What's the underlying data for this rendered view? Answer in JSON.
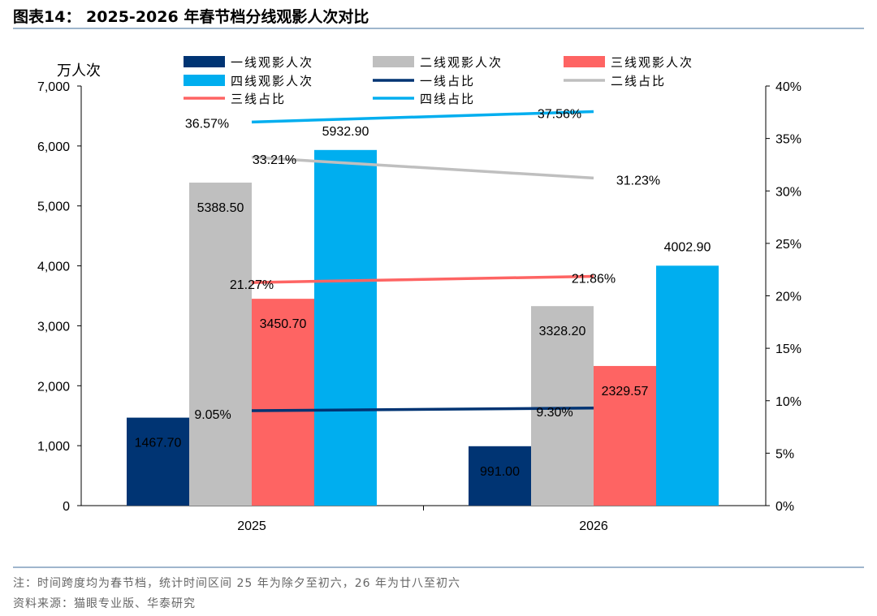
{
  "title": "图表14：  2025-2026 年春节档分线观影人次对比",
  "note": "注：时间跨度均为春节档，统计时间区间 25 年为除夕至初六，26 年为廿八至初六",
  "source": "资料来源：猫眼专业版、华泰研究",
  "chart_data": {
    "type": "bar+line",
    "categories": [
      "2025",
      "2026"
    ],
    "ylabel": "万人次",
    "ylim": [
      0,
      7000
    ],
    "yticks": [
      "0",
      "1,000",
      "2,000",
      "3,000",
      "4,000",
      "5,000",
      "6,000",
      "7,000"
    ],
    "y2lim": [
      0,
      0.4
    ],
    "y2ticks": [
      "0%",
      "5%",
      "10%",
      "15%",
      "20%",
      "25%",
      "30%",
      "35%",
      "40%"
    ],
    "legend_position": "top",
    "grid": false,
    "bar_series": [
      {
        "name": "一线观影人次",
        "color": "#003473",
        "values": [
          1467.7,
          991.0
        ],
        "labels": [
          "1467.70",
          "991.00"
        ]
      },
      {
        "name": "二线观影人次",
        "color": "#bfbfbf",
        "values": [
          5388.5,
          3328.2
        ],
        "labels": [
          "5388.50",
          "3328.20"
        ]
      },
      {
        "name": "三线观影人次",
        "color": "#fe6463",
        "values": [
          3450.7,
          2329.57
        ],
        "labels": [
          "3450.70",
          "2329.57"
        ]
      },
      {
        "name": "四线观影人次",
        "color": "#00aeef",
        "values": [
          5932.9,
          4002.9
        ],
        "labels": [
          "5932.90",
          "4002.90"
        ]
      }
    ],
    "line_series": [
      {
        "name": "一线占比",
        "color": "#003473",
        "values": [
          0.0905,
          0.093
        ],
        "labels": [
          "9.05%",
          "9.30%"
        ]
      },
      {
        "name": "二线占比",
        "color": "#bfbfbf",
        "values": [
          0.3321,
          0.3123
        ],
        "labels": [
          "33.21%",
          "31.23%"
        ]
      },
      {
        "name": "三线占比",
        "color": "#fe6463",
        "values": [
          0.2127,
          0.2186
        ],
        "labels": [
          "21.27%",
          "21.86%"
        ]
      },
      {
        "name": "四线占比",
        "color": "#00aeef",
        "values": [
          0.3657,
          0.3756
        ],
        "labels": [
          "36.57%",
          "37.56%"
        ]
      }
    ]
  }
}
